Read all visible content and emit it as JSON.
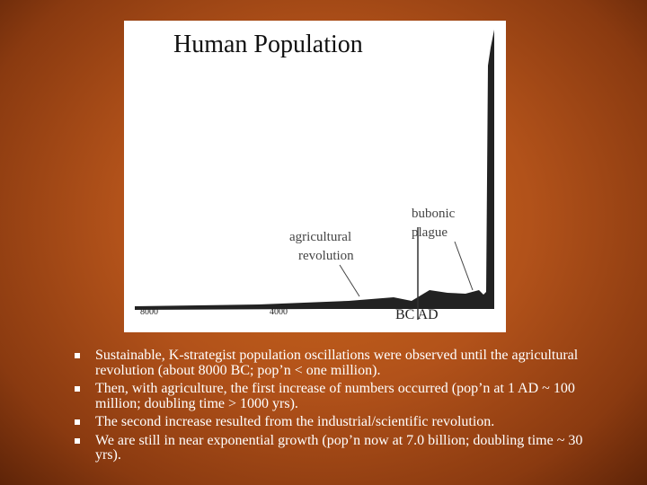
{
  "figure": {
    "title": "Human Population",
    "x_labels": [
      "8000",
      "4000"
    ],
    "era_label": "BC AD",
    "annotations": [
      [
        "agricultural",
        "revolution"
      ],
      [
        "bubonic",
        "plague"
      ]
    ]
  },
  "bullets": [
    "Sustainable, K-strategist population oscillations were observed until the agricultural revolution (about 8000 BC; pop’n < one million).",
    "Then, with agriculture, the first increase of numbers occurred (pop’n at 1 AD ~ 100 million; doubling time > 1000 yrs).",
    "The second increase resulted from the industrial/scientific revolution.",
    "We are still in near exponential growth (pop’n now at 7.0 billion; doubling time ~ 30 yrs)."
  ]
}
